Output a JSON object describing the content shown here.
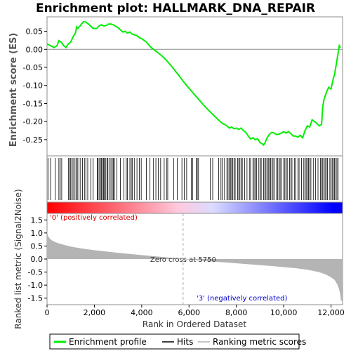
{
  "chart_data": {
    "type": "line",
    "title": "Enrichment plot: HALLMARK_DNA_REPAIR",
    "xlabel": "Rank in Ordered Dataset",
    "xlim": [
      0,
      12488
    ],
    "x_ticks": [
      0,
      2000,
      4000,
      6000,
      8000,
      10000,
      12000
    ],
    "x_tick_labels": [
      "0",
      "2,000",
      "4,000",
      "6,000",
      "8,000",
      "10,000",
      "12,000"
    ],
    "top_panel": {
      "ylabel": "Enrichment score (ES)",
      "ylim": [
        -0.295,
        0.09
      ],
      "y_ticks": [
        0.05,
        0.0,
        -0.05,
        -0.1,
        -0.15,
        -0.2,
        -0.25
      ],
      "y_tick_labels": [
        "0.05",
        "0.00",
        "-0.05",
        "-0.10",
        "-0.15",
        "-0.20",
        "-0.25"
      ],
      "series": [
        {
          "name": "Enrichment profile",
          "color": "#00ee00",
          "x": [
            0,
            150,
            300,
            420,
            500,
            600,
            700,
            800,
            900,
            1000,
            1100,
            1200,
            1250,
            1300,
            1400,
            1450,
            1550,
            1650,
            1750,
            1850,
            1950,
            2100,
            2200,
            2300,
            2400,
            2500,
            2600,
            2700,
            2800,
            2900,
            3000,
            3100,
            3200,
            3300,
            3400,
            3500,
            3600,
            3700,
            3800,
            3900,
            4000,
            4200,
            4400,
            4600,
            4800,
            5000,
            5200,
            5400,
            5600,
            5800,
            6000,
            6200,
            6400,
            6600,
            6800,
            7000,
            7200,
            7400,
            7500,
            7600,
            7700,
            7800,
            7900,
            8000,
            8100,
            8200,
            8300,
            8400,
            8500,
            8600,
            8700,
            8800,
            8900,
            9000,
            9100,
            9150,
            9200,
            9300,
            9400,
            9500,
            9600,
            9700,
            9800,
            9900,
            10000,
            10100,
            10200,
            10300,
            10400,
            10500,
            10600,
            10700,
            10800,
            10900,
            11000,
            11100,
            11200,
            11300,
            11400,
            11500,
            11600,
            11650,
            11700,
            11800,
            11900,
            12000,
            12100,
            12150,
            12200,
            12250,
            12300,
            12350,
            12400
          ],
          "y": [
            0.015,
            0.01,
            0.005,
            0.01,
            0.024,
            0.02,
            0.01,
            0.005,
            0.015,
            0.02,
            0.035,
            0.045,
            0.062,
            0.058,
            0.065,
            0.07,
            0.077,
            0.075,
            0.07,
            0.064,
            0.058,
            0.058,
            0.065,
            0.068,
            0.065,
            0.066,
            0.07,
            0.07,
            0.068,
            0.064,
            0.06,
            0.054,
            0.048,
            0.05,
            0.045,
            0.048,
            0.042,
            0.04,
            0.038,
            0.032,
            0.03,
            0.02,
            0.005,
            -0.005,
            -0.015,
            -0.027,
            -0.042,
            -0.058,
            -0.075,
            -0.092,
            -0.108,
            -0.123,
            -0.138,
            -0.153,
            -0.167,
            -0.18,
            -0.193,
            -0.205,
            -0.208,
            -0.212,
            -0.218,
            -0.215,
            -0.22,
            -0.218,
            -0.222,
            -0.218,
            -0.225,
            -0.23,
            -0.24,
            -0.248,
            -0.245,
            -0.25,
            -0.248,
            -0.258,
            -0.262,
            -0.265,
            -0.26,
            -0.245,
            -0.235,
            -0.23,
            -0.232,
            -0.236,
            -0.235,
            -0.232,
            -0.228,
            -0.232,
            -0.228,
            -0.233,
            -0.24,
            -0.24,
            -0.243,
            -0.238,
            -0.245,
            -0.225,
            -0.212,
            -0.215,
            -0.195,
            -0.2,
            -0.205,
            -0.212,
            -0.208,
            -0.16,
            -0.14,
            -0.12,
            -0.105,
            -0.11,
            -0.08,
            -0.07,
            -0.05,
            -0.03,
            -0.01,
            0.01,
            0.005
          ]
        }
      ]
    },
    "hits_panel": {
      "legend_name": "Hits",
      "color": "#000000",
      "hit_ranks": [
        40,
        150,
        350,
        500,
        560,
        620,
        900,
        960,
        1000,
        1050,
        1100,
        1180,
        1230,
        1280,
        1350,
        1420,
        1500,
        1580,
        1640,
        1720,
        1850,
        1950,
        2120,
        2150,
        2200,
        2260,
        2300,
        2350,
        2390,
        2420,
        2470,
        2530,
        2570,
        2620,
        2700,
        2760,
        2800,
        2850,
        2950,
        3100,
        3250,
        3350,
        3400,
        3500,
        3560,
        3600,
        3700,
        3800,
        3900,
        3980,
        4200,
        4350,
        4500,
        4600,
        4700,
        4800,
        4950,
        5050,
        5100,
        5350,
        5500,
        5700,
        5800,
        5900,
        6100,
        6150,
        6300,
        6350,
        6400,
        6900,
        7000,
        7250,
        7350,
        7400,
        7500,
        7600,
        7650,
        7700,
        7750,
        7800,
        7850,
        7900,
        7950,
        8050,
        8100,
        8150,
        8200,
        8250,
        8350,
        8450,
        8550,
        8600,
        8700,
        8750,
        8800,
        8850,
        8950,
        9000,
        9050,
        9150,
        9200,
        9250,
        9300,
        9350,
        9400,
        9450,
        9500,
        9550,
        9600,
        9700,
        9750,
        9800,
        9850,
        9900,
        10000,
        10050,
        10100,
        10150,
        10250,
        10300,
        10350,
        10450,
        10500,
        10600,
        10650,
        10750,
        10850,
        10900,
        10950,
        11000,
        11050,
        11100,
        11150,
        11250,
        11350,
        11450,
        11550,
        11600,
        11650,
        11700,
        11750,
        11800,
        11850,
        11950,
        12000,
        12050,
        12100,
        12150,
        12200,
        12250,
        12300
      ]
    },
    "heatmap_bar": {
      "colors": [
        "#ff0000",
        "#ffc8dc",
        "#dcdcff",
        "#0000ff"
      ]
    },
    "bottom_panel": {
      "ylabel": "Ranked list metric (Signal2Noise)",
      "legend_name": "Ranking metric scores",
      "color": "#b4b4b4",
      "ylim": [
        -1.75,
        1.75
      ],
      "y_ticks": [
        1.5,
        1.0,
        0.5,
        0.0,
        -0.5,
        -1.0,
        -1.5
      ],
      "y_tick_labels": [
        "1.5",
        "1.0",
        "0.5",
        "0.0",
        "-0.5",
        "-1.0",
        "-1.5"
      ],
      "x": [
        0,
        20,
        60,
        120,
        200,
        350,
        500,
        700,
        1000,
        1500,
        2000,
        3000,
        4000,
        5000,
        5750,
        6500,
        7500,
        8500,
        9500,
        10500,
        11000,
        11500,
        11800,
        12000,
        12150,
        12250,
        12320,
        12380,
        12420,
        12488
      ],
      "y": [
        1.1,
        0.95,
        0.85,
        0.78,
        0.72,
        0.65,
        0.6,
        0.55,
        0.48,
        0.4,
        0.34,
        0.24,
        0.15,
        0.07,
        0.0,
        -0.06,
        -0.13,
        -0.2,
        -0.27,
        -0.35,
        -0.41,
        -0.5,
        -0.6,
        -0.7,
        -0.8,
        -0.95,
        -1.1,
        -1.3,
        -1.6,
        -1.6
      ],
      "positive_label": "'0' (positively correlated)",
      "negative_label": "'3' (negatively correlated)",
      "zero_cross_label": "Zero cross at 5750",
      "zero_cross_rank": 5750
    },
    "legend": {
      "position": "bottom",
      "entries": [
        "Enrichment profile",
        "Hits",
        "Ranking metric scores"
      ]
    }
  }
}
